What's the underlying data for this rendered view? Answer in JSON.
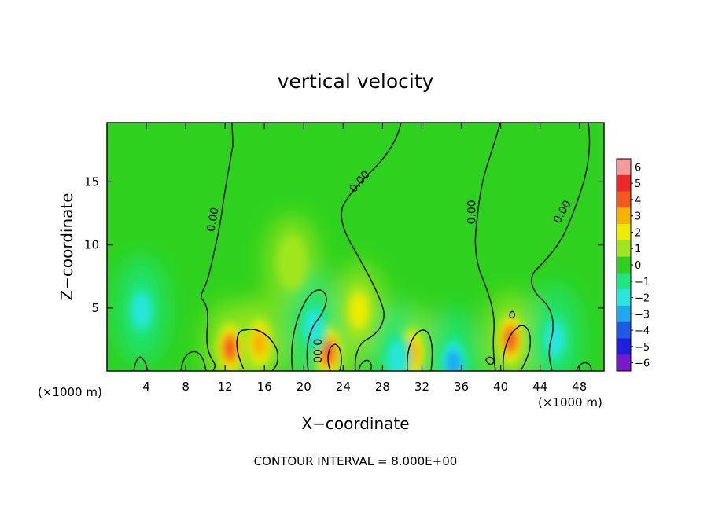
{
  "chart_data": {
    "type": "heatmap",
    "title": "vertical velocity",
    "xlabel": "X−coordinate",
    "ylabel": "Z−coordinate",
    "x_unit_left": "(×1000 m)",
    "x_unit_right": "(×1000 m)",
    "xlim": [
      0,
      50.5
    ],
    "ylim": [
      0,
      19.7
    ],
    "x_ticks": [
      4,
      8,
      12,
      16,
      20,
      24,
      28,
      32,
      36,
      40,
      44,
      48
    ],
    "y_ticks": [
      5,
      10,
      15
    ],
    "footer": "CONTOUR INTERVAL = 8.000E+00",
    "contour_label": "0.00",
    "colorbar": {
      "levels": [
        6,
        5,
        4,
        3,
        2,
        1,
        0,
        -1,
        -2,
        -3,
        -4,
        -5,
        -6
      ],
      "labels": [
        "6",
        "5",
        "4",
        "3",
        "2",
        "1",
        "0",
        "−1",
        "−2",
        "−3",
        "−4",
        "−5",
        "−6"
      ],
      "colors": [
        "#f49a9a",
        "#ee2828",
        "#f45a1e",
        "#f6b400",
        "#ecec00",
        "#a0e61e",
        "#2ed21e",
        "#1ee680",
        "#28e6dc",
        "#1eaaf0",
        "#1e5ae6",
        "#1e1ede",
        "#7818c8"
      ]
    },
    "background_color": "#2ed21e",
    "features": [
      {
        "type": "updraft",
        "x": 12.5,
        "z": 1.8,
        "value": 3.5
      },
      {
        "type": "updraft",
        "x": 15.5,
        "z": 2.2,
        "value": 3.0
      },
      {
        "type": "updraft",
        "x": 22.5,
        "z": 1.5,
        "value": 3.5
      },
      {
        "type": "updraft",
        "x": 31.0,
        "z": 1.4,
        "value": 3.2
      },
      {
        "type": "updraft",
        "x": 41.0,
        "z": 2.5,
        "value": 3.5
      },
      {
        "type": "updraft",
        "x": 18.8,
        "z": 8.6,
        "value": 1.3
      },
      {
        "type": "updraft",
        "x": 25.6,
        "z": 4.8,
        "value": 1.5
      },
      {
        "type": "downdraft",
        "x": 3.5,
        "z": 4.8,
        "value": -2.5
      },
      {
        "type": "downdraft",
        "x": 21.0,
        "z": 3.5,
        "value": -1.8
      },
      {
        "type": "downdraft",
        "x": 29.5,
        "z": 1.0,
        "value": -2.5
      },
      {
        "type": "downdraft",
        "x": 35.2,
        "z": 0.6,
        "value": -3.0
      },
      {
        "type": "downdraft",
        "x": 45.5,
        "z": 2.5,
        "value": -2.0
      }
    ]
  }
}
